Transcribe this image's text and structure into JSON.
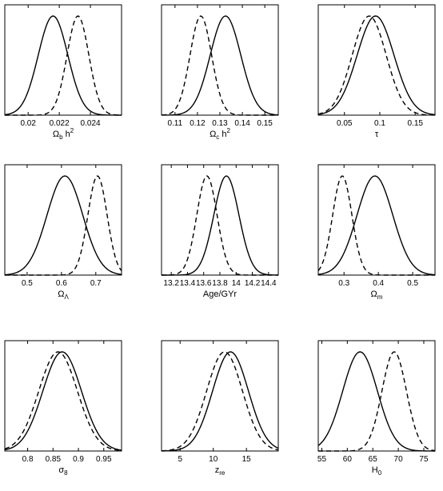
{
  "chart_data": [
    {
      "type": "line",
      "xlabel": "Ω_b h^2",
      "xlabel_parts": {
        "main": "Ω",
        "sub": "b",
        "tail": " h",
        "sup": "2"
      },
      "xlim": [
        0.0185,
        0.026
      ],
      "ticks": [
        0.02,
        0.022,
        0.024
      ],
      "tick_labels": [
        "0.02",
        "0.022",
        "0.024"
      ],
      "series": [
        {
          "style": "solid",
          "peak_x": 0.0216,
          "sigma": 0.00095
        },
        {
          "style": "dashed",
          "peak_x": 0.0232,
          "sigma": 0.0007
        }
      ]
    },
    {
      "type": "line",
      "xlabel": "Ω_c h^2",
      "xlabel_parts": {
        "main": "Ω",
        "sub": "c",
        "tail": " h",
        "sup": "2"
      },
      "xlim": [
        0.104,
        0.156
      ],
      "ticks": [
        0.11,
        0.12,
        0.13,
        0.14,
        0.15
      ],
      "tick_labels": [
        "0.11",
        "0.12",
        "0.13",
        "0.14",
        "0.15"
      ],
      "series": [
        {
          "style": "solid",
          "peak_x": 0.1325,
          "sigma": 0.0068
        },
        {
          "style": "dashed",
          "peak_x": 0.1215,
          "sigma": 0.0048
        }
      ]
    },
    {
      "type": "line",
      "xlabel": "τ",
      "xlabel_parts": {
        "main": "τ"
      },
      "xlim": [
        0.013,
        0.178
      ],
      "ticks": [
        0.05,
        0.1,
        0.15
      ],
      "tick_labels": [
        "0.05",
        "0.1",
        "0.15"
      ],
      "series": [
        {
          "style": "solid",
          "peak_x": 0.094,
          "sigma": 0.026
        },
        {
          "style": "dashed",
          "peak_x": 0.085,
          "sigma": 0.024
        }
      ]
    },
    {
      "type": "line",
      "xlabel": "Ω_Λ",
      "xlabel_parts": {
        "main": "Ω",
        "sub": "Λ"
      },
      "xlim": [
        0.435,
        0.775
      ],
      "ticks": [
        0.5,
        0.6,
        0.7
      ],
      "tick_labels": [
        "0.5",
        "0.6",
        "0.7"
      ],
      "series": [
        {
          "style": "solid",
          "peak_x": 0.61,
          "sigma": 0.052
        },
        {
          "style": "dashed",
          "peak_x": 0.705,
          "sigma": 0.028
        }
      ]
    },
    {
      "type": "line",
      "xlabel": "Age/GYr",
      "xlabel_parts": {
        "main": "Age/GYr"
      },
      "xlim": [
        13.08,
        14.52
      ],
      "ticks": [
        13.2,
        13.4,
        13.6,
        13.8,
        14,
        14.2,
        14.4
      ],
      "tick_labels": [
        "13.2",
        "13.4",
        "13.6",
        "13.8",
        "14",
        "14.2",
        "14.4"
      ],
      "series": [
        {
          "style": "solid",
          "peak_x": 13.88,
          "sigma": 0.155
        },
        {
          "style": "dashed",
          "peak_x": 13.64,
          "sigma": 0.125
        }
      ]
    },
    {
      "type": "line",
      "xlabel": "Ω_m",
      "xlabel_parts": {
        "main": "Ω",
        "sub": "m"
      },
      "xlim": [
        0.225,
        0.565
      ],
      "ticks": [
        0.3,
        0.4,
        0.5
      ],
      "tick_labels": [
        "0.3",
        "0.4",
        "0.5"
      ],
      "series": [
        {
          "style": "solid",
          "peak_x": 0.39,
          "sigma": 0.052
        },
        {
          "style": "dashed",
          "peak_x": 0.295,
          "sigma": 0.028
        }
      ]
    },
    {
      "type": "line",
      "xlabel": "σ_8",
      "xlabel_parts": {
        "main": "σ",
        "sub": "8"
      },
      "xlim": [
        0.755,
        0.985
      ],
      "ticks": [
        0.8,
        0.85,
        0.9,
        0.95
      ],
      "tick_labels": [
        "0.8",
        "0.85",
        "0.9",
        "0.95"
      ],
      "series": [
        {
          "style": "solid",
          "peak_x": 0.868,
          "sigma": 0.038
        },
        {
          "style": "dashed",
          "peak_x": 0.86,
          "sigma": 0.038
        }
      ]
    },
    {
      "type": "line",
      "xlabel": "z_re",
      "xlabel_parts": {
        "main": "z",
        "sub": "re"
      },
      "xlim": [
        2.2,
        19.8
      ],
      "ticks": [
        5,
        10,
        15
      ],
      "tick_labels": [
        "5",
        "10",
        "15"
      ],
      "series": [
        {
          "style": "solid",
          "peak_x": 12.6,
          "sigma": 2.7
        },
        {
          "style": "dashed",
          "peak_x": 11.7,
          "sigma": 2.7
        }
      ]
    },
    {
      "type": "line",
      "xlabel": "H_0",
      "xlabel_parts": {
        "main": "H",
        "sub": "0"
      },
      "xlim": [
        54.3,
        77.2
      ],
      "ticks": [
        55,
        60,
        65,
        70,
        75
      ],
      "tick_labels": [
        "55",
        "60",
        "65",
        "70",
        "75"
      ],
      "series": [
        {
          "style": "solid",
          "peak_x": 62.5,
          "sigma": 3.4
        },
        {
          "style": "dashed",
          "peak_x": 69.2,
          "sigma": 2.4
        }
      ]
    }
  ]
}
